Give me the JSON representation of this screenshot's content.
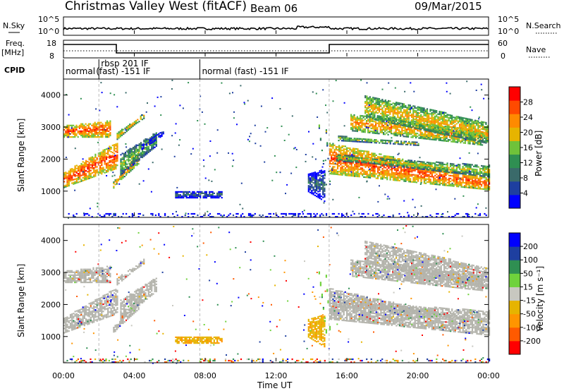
{
  "header": {
    "title": "Christmas Valley West (fitACF)",
    "beam": "Beam 06",
    "date": "09/Mar/2015"
  },
  "aux_panels": {
    "nsky_label": "N.Sky",
    "nsky_ticks": [
      "10^5",
      "10^0"
    ],
    "nsearch_label": "N.Search",
    "nsearch_ticks": [
      "10^5",
      "10^0"
    ],
    "freq_label": "Freq.",
    "freq_unit": "[MHz]",
    "freq_ticks": [
      "18",
      "8"
    ],
    "nave_label": "Nave",
    "nave_ticks": [
      "60",
      "0"
    ],
    "cpid_label": "CPID"
  },
  "cpid_segments": [
    {
      "start_h": 0.0,
      "end_h": 2.0,
      "label": "normal"
    },
    {
      "start_h": 2.0,
      "end_h": 7.7,
      "label": "rbsp 201 IF",
      "label2": "(fast) -151 IF"
    },
    {
      "start_h": 7.7,
      "end_h": 24.0,
      "label": "normal (fast) -151 IF"
    }
  ],
  "colors": {
    "power_scale": [
      "#0000ff",
      "#1e3fa0",
      "#3a6a6a",
      "#2f8f52",
      "#6fc23a",
      "#e6b400",
      "#ff8a00",
      "#ff4a00",
      "#ff0000"
    ],
    "velocity_scale": [
      "#ff0000",
      "#ff5a00",
      "#ff9500",
      "#e6b400",
      "#c8c8c0",
      "#6fd23c",
      "#2f8f52",
      "#1e3fa0",
      "#0000ff"
    ],
    "ground_scatter": "#b4b4ac"
  },
  "chart_data": [
    {
      "type": "heatmap",
      "panel": "power",
      "ylabel": "Slant Range [km]",
      "y_ticks": [
        1000,
        2000,
        3000,
        4000
      ],
      "ylim": [
        180,
        4500
      ],
      "xlim_h": [
        0,
        24
      ],
      "colorbar_label": "Power [dB]",
      "colorbar_ticks": [
        "28",
        "24",
        "20",
        "16",
        "12",
        "8",
        "4"
      ],
      "regions": [
        {
          "kind": "band",
          "t": [
            0.0,
            2.6
          ],
          "r0": [
            2780,
            2780
          ],
          "r1": [
            3000,
            3160
          ],
          "w": 130,
          "v": 0.9
        },
        {
          "kind": "band",
          "t": [
            0.0,
            3.0
          ],
          "r0": [
            1300,
            1900
          ],
          "r1": [
            1450,
            2400
          ],
          "w": 320,
          "v": 0.92
        },
        {
          "kind": "band",
          "t": [
            2.8,
            4.2
          ],
          "r0": [
            1250,
            1950
          ],
          "r1": [
            1200,
            2200
          ],
          "w": 150,
          "v": 0.8
        },
        {
          "kind": "band",
          "t": [
            3.2,
            5.2
          ],
          "r0": [
            1600,
            2500
          ],
          "r1": [
            2100,
            2800
          ],
          "w": 140,
          "v": 0.55
        },
        {
          "kind": "band",
          "t": [
            3.0,
            4.5
          ],
          "r0": [
            2800,
            3350
          ],
          "r1": [
            2700,
            3400
          ],
          "w": 110,
          "v": 0.75
        },
        {
          "kind": "band",
          "t": [
            4.4,
            5.6
          ],
          "r0": [
            2400,
            2850
          ],
          "r1": [
            2400,
            2850
          ],
          "w": 150,
          "v": 0.2
        },
        {
          "kind": "blob",
          "t": [
            6.3,
            8.9
          ],
          "r": [
            820,
            1020
          ],
          "v": 0.3
        },
        {
          "kind": "band",
          "t": [
            13.8,
            14.7
          ],
          "r0": [
            1100,
            800
          ],
          "r1": [
            1500,
            1600
          ],
          "w": 180,
          "v": 0.28
        },
        {
          "kind": "band",
          "t": [
            14.4,
            14.8
          ],
          "r0": [
            3050,
            1200
          ],
          "r1": [
            3050,
            1200
          ],
          "w": 120,
          "v": 0.55
        },
        {
          "kind": "band",
          "t": [
            14.8,
            15.0
          ],
          "r0": [
            2900,
            1300
          ],
          "r1": [
            2900,
            1300
          ],
          "w": 120,
          "v": 0.6
        },
        {
          "kind": "band",
          "t": [
            15.0,
            24.0
          ],
          "r0": [
            2400,
            1300
          ],
          "r1": [
            1700,
            1200
          ],
          "w": 260,
          "v": 0.9
        },
        {
          "kind": "band",
          "t": [
            15.4,
            24.0
          ],
          "r0": [
            2050,
            1750
          ],
          "r1": [
            2100,
            1550
          ],
          "w": 160,
          "v": 0.62
        },
        {
          "kind": "band",
          "t": [
            16.2,
            23.6
          ],
          "r0": [
            2950,
            2500
          ],
          "r1": [
            3400,
            2900
          ],
          "w": 70,
          "v": 0.78
        },
        {
          "kind": "band",
          "t": [
            17.0,
            23.9
          ],
          "r0": [
            3350,
            2550
          ],
          "r1": [
            4000,
            3150
          ],
          "w": 60,
          "v": 0.7
        },
        {
          "kind": "band",
          "t": [
            15.5,
            20.0
          ],
          "r0": [
            2650,
            2500
          ],
          "r1": [
            2700,
            2500
          ],
          "w": 90,
          "v": 0.6
        },
        {
          "kind": "blob",
          "t": [
            0.0,
            24.0
          ],
          "r": [
            180,
            320
          ],
          "v": 0.15
        }
      ]
    },
    {
      "type": "heatmap",
      "panel": "velocity",
      "ylabel": "Slant Range [km]",
      "y_ticks": [
        1000,
        2000,
        3000,
        4000
      ],
      "ylim": [
        180,
        4500
      ],
      "xlim_h": [
        0,
        24
      ],
      "xlabel": "Time UT",
      "x_ticks": [
        "00:00",
        "04:00",
        "08:00",
        "12:00",
        "16:00",
        "20:00",
        "00:00"
      ],
      "colorbar_label": "Velocity [m s⁻¹]",
      "colorbar_ticks": [
        "200",
        "100",
        "50",
        "15",
        "-15",
        "-50",
        "-100",
        "-200"
      ],
      "regions": [
        {
          "kind": "band",
          "t": [
            0.0,
            2.6
          ],
          "r0": [
            2780,
            2780
          ],
          "r1": [
            3000,
            3160
          ],
          "w": 130,
          "c": "gs"
        },
        {
          "kind": "band",
          "t": [
            0.0,
            3.0
          ],
          "r0": [
            1300,
            1900
          ],
          "r1": [
            1450,
            2400
          ],
          "w": 320,
          "c": "gs"
        },
        {
          "kind": "band",
          "t": [
            2.8,
            4.2
          ],
          "r0": [
            1250,
            1950
          ],
          "r1": [
            1200,
            2200
          ],
          "w": 150,
          "c": "gs"
        },
        {
          "kind": "band",
          "t": [
            3.2,
            5.2
          ],
          "r0": [
            1600,
            2500
          ],
          "r1": [
            2100,
            2800
          ],
          "w": 140,
          "c": "gs"
        },
        {
          "kind": "band",
          "t": [
            3.0,
            4.5
          ],
          "r0": [
            2800,
            3350
          ],
          "r1": [
            2700,
            3400
          ],
          "w": 110,
          "c": "gs"
        },
        {
          "kind": "blob",
          "t": [
            6.3,
            8.9
          ],
          "r": [
            820,
            1020
          ],
          "c": "orange"
        },
        {
          "kind": "band",
          "t": [
            13.8,
            14.7
          ],
          "r0": [
            1100,
            800
          ],
          "r1": [
            1500,
            1600
          ],
          "w": 180,
          "c": "orange"
        },
        {
          "kind": "band",
          "t": [
            14.4,
            14.8
          ],
          "r0": [
            3050,
            1200
          ],
          "r1": [
            3050,
            1200
          ],
          "w": 120,
          "c": "green"
        },
        {
          "kind": "band",
          "t": [
            14.8,
            15.0
          ],
          "r0": [
            2900,
            1300
          ],
          "r1": [
            2900,
            1300
          ],
          "w": 120,
          "c": "green"
        },
        {
          "kind": "band",
          "t": [
            15.0,
            24.0
          ],
          "r0": [
            2400,
            1300
          ],
          "r1": [
            1700,
            1200
          ],
          "w": 260,
          "c": "gs"
        },
        {
          "kind": "band",
          "t": [
            15.4,
            24.0
          ],
          "r0": [
            2050,
            1750
          ],
          "r1": [
            2100,
            1550
          ],
          "w": 160,
          "c": "gs"
        },
        {
          "kind": "band",
          "t": [
            16.2,
            23.6
          ],
          "r0": [
            2950,
            2500
          ],
          "r1": [
            3400,
            2900
          ],
          "w": 70,
          "c": "gs"
        },
        {
          "kind": "band",
          "t": [
            17.0,
            23.9
          ],
          "r0": [
            3350,
            2550
          ],
          "r1": [
            4000,
            3150
          ],
          "w": 60,
          "c": "gs"
        },
        {
          "kind": "blob",
          "t": [
            0.0,
            24.0
          ],
          "r": [
            180,
            320
          ],
          "c": "mixed"
        }
      ]
    }
  ]
}
